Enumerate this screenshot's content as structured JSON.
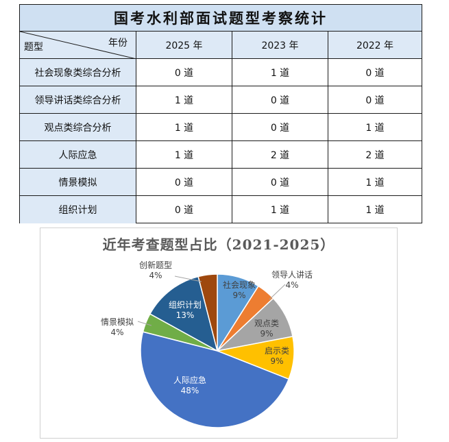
{
  "table": {
    "title": "国考水利部面试题型考察统计",
    "corner_left": "题型",
    "corner_right": "年份",
    "years": [
      "2025 年",
      "2023 年",
      "2022 年"
    ],
    "rows": [
      {
        "label": "社会现象类综合分析",
        "values": [
          "0 道",
          "1 道",
          "0 道"
        ]
      },
      {
        "label": "领导讲话类综合分析",
        "values": [
          "1 道",
          "0 道",
          "0 道"
        ]
      },
      {
        "label": "观点类综合分析",
        "values": [
          "1 道",
          "0 道",
          "1 道"
        ]
      },
      {
        "label": "人际应急",
        "values": [
          "1 道",
          "2 道",
          "2 道"
        ]
      },
      {
        "label": "情景模拟",
        "values": [
          "0 道",
          "0 道",
          "1 道"
        ]
      },
      {
        "label": "组织计划",
        "values": [
          "0 道",
          "1 道",
          "1 道"
        ]
      }
    ]
  },
  "chart_data": {
    "type": "pie",
    "title": "近年考查题型占比（2021-2025）",
    "categories": [
      "社会现象",
      "领导人讲话",
      "观点类",
      "启示类",
      "人际应急",
      "情景模拟",
      "组织计划",
      "创新题型"
    ],
    "values": [
      9,
      4,
      9,
      9,
      48,
      4,
      13,
      4
    ],
    "labels": [
      "9%",
      "4%",
      "9%",
      "9%",
      "48%",
      "4%",
      "13%",
      "4%"
    ],
    "colors": [
      "#5b9bd5",
      "#ed7d31",
      "#a5a5a5",
      "#ffc000",
      "#4472c4",
      "#70ad47",
      "#255e91",
      "#9e480e"
    ],
    "start_angle_deg": 0,
    "legend": "none"
  }
}
